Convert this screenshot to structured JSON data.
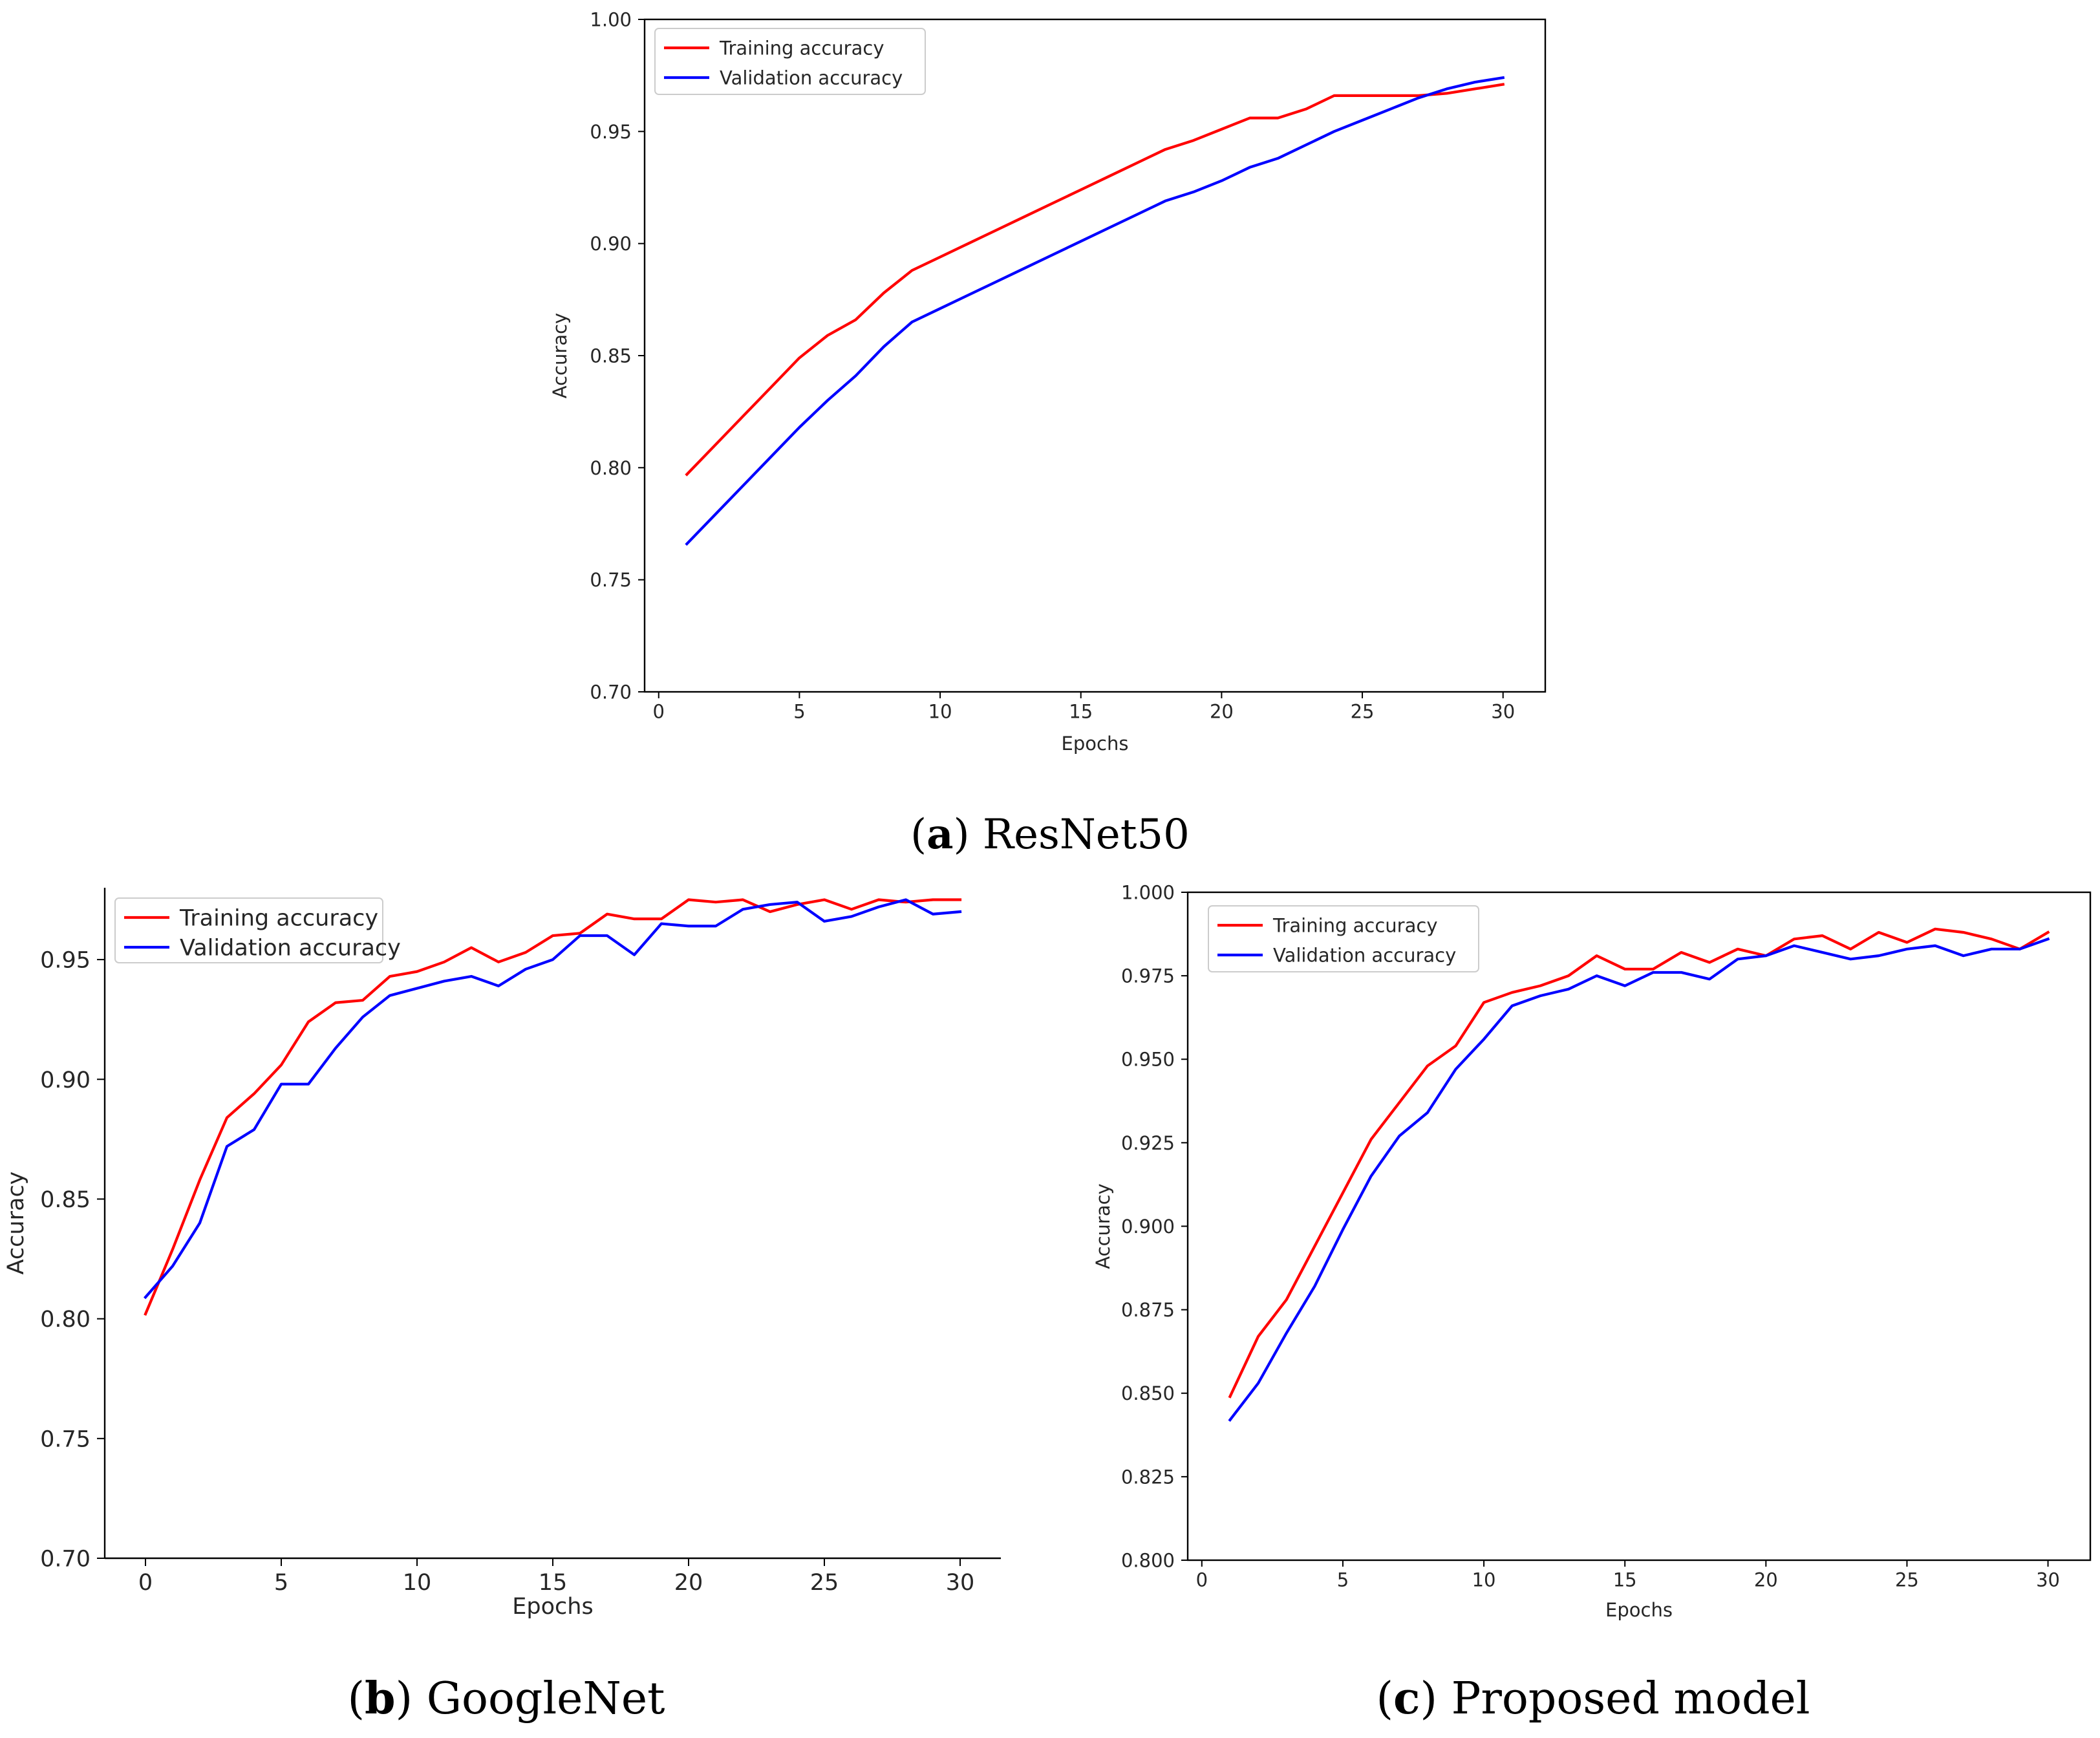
{
  "figure": {
    "captions": [
      {
        "letter": "a",
        "open": "(",
        "close": ")",
        "name": "ResNet50"
      },
      {
        "letter": "b",
        "open": "(",
        "close": ")",
        "name": "GoogleNet"
      },
      {
        "letter": "c",
        "open": "(",
        "close": ")",
        "name": "Proposed model"
      }
    ]
  },
  "chart_data": [
    {
      "id": "a",
      "type": "line",
      "title": "",
      "xlabel": "Epochs",
      "ylabel": "Accuracy",
      "xlim": [
        -0.5,
        31.5
      ],
      "ylim": [
        0.7,
        1.0
      ],
      "xticks": [
        0,
        5,
        10,
        15,
        20,
        25,
        30
      ],
      "yticks": [
        0.7,
        0.75,
        0.8,
        0.85,
        0.9,
        0.95,
        1.0
      ],
      "ytick_decimals": 2,
      "grid": false,
      "legend_position": "top-left",
      "spines": "box",
      "x": [
        1,
        2,
        3,
        4,
        5,
        6,
        7,
        8,
        9,
        10,
        11,
        12,
        13,
        14,
        15,
        16,
        17,
        18,
        19,
        20,
        21,
        22,
        23,
        24,
        25,
        26,
        27,
        28,
        29,
        30
      ],
      "series": [
        {
          "name": "Training accuracy",
          "color": "#ff0000",
          "values": [
            0.797,
            0.81,
            0.823,
            0.836,
            0.849,
            0.859,
            0.866,
            0.878,
            0.888,
            0.894,
            0.9,
            0.906,
            0.912,
            0.918,
            0.924,
            0.93,
            0.936,
            0.942,
            0.946,
            0.951,
            0.956,
            0.956,
            0.96,
            0.966,
            0.966,
            0.966,
            0.966,
            0.967,
            0.969,
            0.971
          ]
        },
        {
          "name": "Validation accuracy",
          "color": "#0000ff",
          "values": [
            0.766,
            0.779,
            0.792,
            0.805,
            0.818,
            0.83,
            0.841,
            0.854,
            0.865,
            0.871,
            0.877,
            0.883,
            0.889,
            0.895,
            0.901,
            0.907,
            0.913,
            0.919,
            0.923,
            0.928,
            0.934,
            0.938,
            0.944,
            0.95,
            0.955,
            0.96,
            0.965,
            0.969,
            0.972,
            0.974
          ]
        }
      ]
    },
    {
      "id": "b",
      "type": "line",
      "title": "",
      "xlabel": "Epochs",
      "ylabel": "Accuracy",
      "xlim": [
        -1.5,
        31.5
      ],
      "ylim": [
        0.7,
        0.98
      ],
      "xticks": [
        0,
        5,
        10,
        15,
        20,
        25,
        30
      ],
      "yticks": [
        0.7,
        0.75,
        0.8,
        0.85,
        0.9,
        0.95
      ],
      "ytick_decimals": 2,
      "grid": false,
      "legend_position": "top-left",
      "spines": "left-bottom",
      "x": [
        0,
        1,
        2,
        3,
        4,
        5,
        6,
        7,
        8,
        9,
        10,
        11,
        12,
        13,
        14,
        15,
        16,
        17,
        18,
        19,
        20,
        21,
        22,
        23,
        24,
        25,
        26,
        27,
        28,
        29,
        30
      ],
      "series": [
        {
          "name": "Training accuracy",
          "color": "#ff0000",
          "values": [
            0.802,
            0.829,
            0.858,
            0.884,
            0.894,
            0.906,
            0.924,
            0.932,
            0.933,
            0.943,
            0.945,
            0.949,
            0.955,
            0.949,
            0.953,
            0.96,
            0.961,
            0.969,
            0.967,
            0.967,
            0.975,
            0.974,
            0.975,
            0.97,
            0.973,
            0.975,
            0.971,
            0.975,
            0.974,
            0.975,
            0.975
          ]
        },
        {
          "name": "Validation accuracy",
          "color": "#0000ff",
          "values": [
            0.809,
            0.822,
            0.84,
            0.872,
            0.879,
            0.898,
            0.898,
            0.913,
            0.926,
            0.935,
            0.938,
            0.941,
            0.943,
            0.939,
            0.946,
            0.95,
            0.96,
            0.96,
            0.952,
            0.965,
            0.964,
            0.964,
            0.971,
            0.973,
            0.974,
            0.966,
            0.968,
            0.972,
            0.975,
            0.969,
            0.97
          ]
        }
      ]
    },
    {
      "id": "c",
      "type": "line",
      "title": "",
      "xlabel": "Epochs",
      "ylabel": "Accuracy",
      "xlim": [
        -0.5,
        31.5
      ],
      "ylim": [
        0.8,
        1.0
      ],
      "xticks": [
        0,
        5,
        10,
        15,
        20,
        25,
        30
      ],
      "yticks": [
        0.8,
        0.825,
        0.85,
        0.875,
        0.9,
        0.925,
        0.95,
        0.975,
        1.0
      ],
      "ytick_decimals": 3,
      "grid": false,
      "legend_position": "top-left",
      "spines": "box",
      "x": [
        1,
        2,
        3,
        4,
        5,
        6,
        7,
        8,
        9,
        10,
        11,
        12,
        13,
        14,
        15,
        16,
        17,
        18,
        19,
        20,
        21,
        22,
        23,
        24,
        25,
        26,
        27,
        28,
        29,
        30
      ],
      "series": [
        {
          "name": "Training accuracy",
          "color": "#ff0000",
          "values": [
            0.849,
            0.867,
            0.878,
            0.894,
            0.91,
            0.926,
            0.937,
            0.948,
            0.954,
            0.967,
            0.97,
            0.972,
            0.975,
            0.981,
            0.977,
            0.977,
            0.982,
            0.979,
            0.983,
            0.981,
            0.986,
            0.987,
            0.983,
            0.988,
            0.985,
            0.989,
            0.988,
            0.986,
            0.983,
            0.988
          ]
        },
        {
          "name": "Validation accuracy",
          "color": "#0000ff",
          "values": [
            0.842,
            0.853,
            0.868,
            0.882,
            0.899,
            0.915,
            0.927,
            0.934,
            0.947,
            0.956,
            0.966,
            0.969,
            0.971,
            0.975,
            0.972,
            0.976,
            0.976,
            0.974,
            0.98,
            0.981,
            0.984,
            0.982,
            0.98,
            0.981,
            0.983,
            0.984,
            0.981,
            0.983,
            0.983,
            0.986
          ]
        }
      ]
    }
  ]
}
